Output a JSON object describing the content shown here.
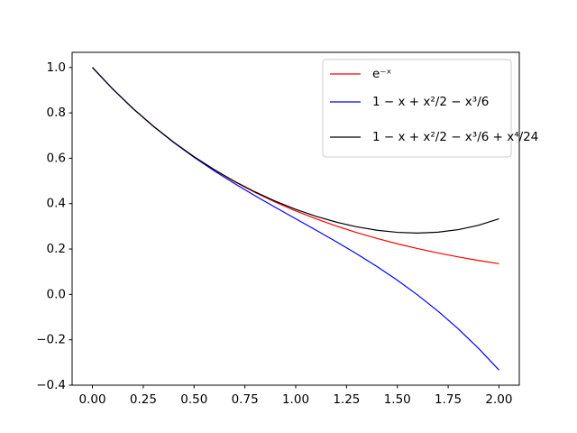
{
  "chart_data": {
    "type": "line",
    "x": [
      0,
      0.1,
      0.2,
      0.3,
      0.4,
      0.5,
      0.6,
      0.7,
      0.8,
      0.9,
      1.0,
      1.1,
      1.2,
      1.3,
      1.4,
      1.5,
      1.6,
      1.7,
      1.8,
      1.9,
      2.0
    ],
    "series": [
      {
        "name": "e⁻ˣ",
        "color": "#ff0000",
        "values": [
          1,
          0.9048,
          0.8187,
          0.7408,
          0.6703,
          0.6065,
          0.5488,
          0.4966,
          0.4493,
          0.4066,
          0.3679,
          0.3329,
          0.3012,
          0.2725,
          0.2466,
          0.2231,
          0.2019,
          0.1827,
          0.1653,
          0.1496,
          0.1353
        ]
      },
      {
        "name": "1 − x + x²/2 − x³/6",
        "color": "#0000ff",
        "values": [
          1,
          0.9048,
          0.8187,
          0.7405,
          0.6693,
          0.6042,
          0.544,
          0.4878,
          0.4347,
          0.3835,
          0.3333,
          0.2832,
          0.232,
          0.1788,
          0.1227,
          0.0625,
          -0.0027,
          -0.0738,
          -0.152,
          -0.2382,
          -0.3333
        ]
      },
      {
        "name": "1 − x + x²/2 − x³/6 + x⁴/24",
        "color": "#000000",
        "values": [
          1,
          0.9048,
          0.8187,
          0.7408,
          0.6704,
          0.6068,
          0.5494,
          0.4978,
          0.4517,
          0.4108,
          0.375,
          0.3442,
          0.3184,
          0.2978,
          0.2827,
          0.2734,
          0.2704,
          0.2742,
          0.2854,
          0.3048,
          0.3333
        ]
      }
    ],
    "xlim": [
      -0.1,
      2.1
    ],
    "ylim": [
      -0.4,
      1.0667
    ],
    "xticks": [
      {
        "value": 0,
        "label": "0.00"
      },
      {
        "value": 0.25,
        "label": "0.25"
      },
      {
        "value": 0.5,
        "label": "0.50"
      },
      {
        "value": 0.75,
        "label": "0.75"
      },
      {
        "value": 1,
        "label": "1.00"
      },
      {
        "value": 1.25,
        "label": "1.25"
      },
      {
        "value": 1.5,
        "label": "1.50"
      },
      {
        "value": 1.75,
        "label": "1.75"
      },
      {
        "value": 2,
        "label": "2.00"
      }
    ],
    "yticks": [
      {
        "value": -0.4,
        "label": "−0.4"
      },
      {
        "value": -0.2,
        "label": "−0.2"
      },
      {
        "value": 0,
        "label": "0.0"
      },
      0.2,
      0.4,
      0.6,
      0.8,
      {
        "value": 1,
        "label": "1.0"
      }
    ],
    "grid": false,
    "legend": "upper right"
  }
}
